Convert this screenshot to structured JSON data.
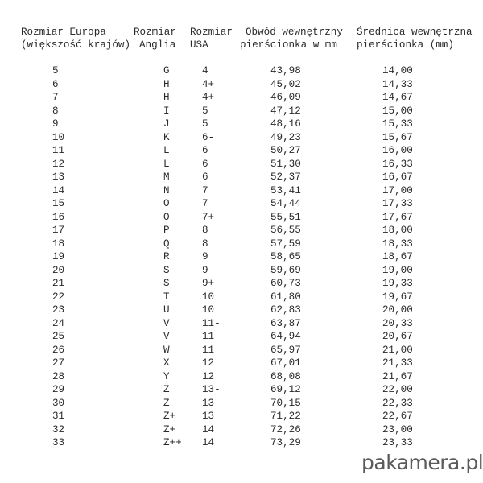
{
  "headers": {
    "europe_1": "Rozmiar Europa",
    "europe_2": "(większość krajów)",
    "uk_1": "Rozmiar",
    "uk_2": "Anglia",
    "usa_1": "Rozmiar",
    "usa_2": "USA",
    "circ_1": "Obwód wewnętrzny",
    "circ_2": "pierścionka w mm",
    "diam_1": "Średnica wewnętrzna",
    "diam_2": "pierścionka (mm)"
  },
  "rows": [
    [
      "5",
      "G",
      "4",
      "43,98",
      "14,00"
    ],
    [
      "6",
      "H",
      "4+",
      "45,02",
      "14,33"
    ],
    [
      "7",
      "H",
      "4+",
      "46,09",
      "14,67"
    ],
    [
      "8",
      "I",
      "5",
      "47,12",
      "15,00"
    ],
    [
      "9",
      "J",
      "5",
      "48,16",
      "15,33"
    ],
    [
      "10",
      "K",
      "6-",
      "49,23",
      "15,67"
    ],
    [
      "11",
      "L",
      "6",
      "50,27",
      "16,00"
    ],
    [
      "12",
      "L",
      "6",
      "51,30",
      "16,33"
    ],
    [
      "13",
      "M",
      "6",
      "52,37",
      "16,67"
    ],
    [
      "14",
      "N",
      "7",
      "53,41",
      "17,00"
    ],
    [
      "15",
      "O",
      "7",
      "54,44",
      "17,33"
    ],
    [
      "16",
      "O",
      "7+",
      "55,51",
      "17,67"
    ],
    [
      "17",
      "P",
      "8",
      "56,55",
      "18,00"
    ],
    [
      "18",
      "Q",
      "8",
      "57,59",
      "18,33"
    ],
    [
      "19",
      "R",
      "9",
      "58,65",
      "18,67"
    ],
    [
      "20",
      "S",
      "9",
      "59,69",
      "19,00"
    ],
    [
      "21",
      "S",
      "9+",
      "60,73",
      "19,33"
    ],
    [
      "22",
      "T",
      "10",
      "61,80",
      "19,67"
    ],
    [
      "23",
      "U",
      "10",
      "62,83",
      "20,00"
    ],
    [
      "24",
      "V",
      "11-",
      "63,87",
      "20,33"
    ],
    [
      "25",
      "V",
      "11",
      "64,94",
      "20,67"
    ],
    [
      "26",
      "W",
      "11",
      "65,97",
      "21,00"
    ],
    [
      "27",
      "X",
      "12",
      "67,01",
      "21,33"
    ],
    [
      "28",
      "Y",
      "12",
      "68,08",
      "21,67"
    ],
    [
      "29",
      "Z",
      "13-",
      "69,12",
      "22,00"
    ],
    [
      "30",
      "Z",
      "13",
      "70,15",
      "22,33"
    ],
    [
      "31",
      "Z+",
      "13",
      "71,22",
      "22,67"
    ],
    [
      "32",
      "Z+",
      "14",
      "72,26",
      "23,00"
    ],
    [
      "33",
      "Z++",
      "14",
      "73,29",
      "23,33"
    ]
  ],
  "watermark": "pakamera.pl"
}
